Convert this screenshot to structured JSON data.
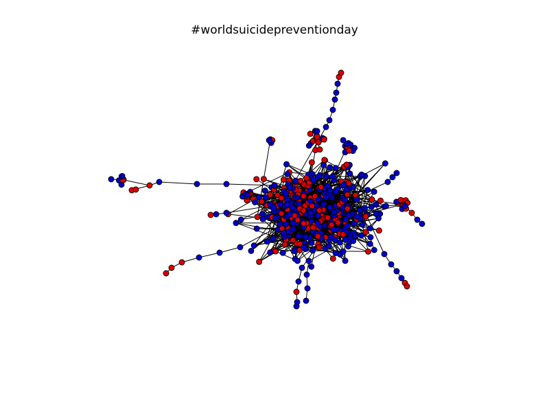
{
  "title": "#worldsuicidepreventionday",
  "graph": {
    "node_colors": {
      "primary": "#0000cc",
      "secondary": "#dd0000"
    },
    "edge_color": "#000000",
    "node_outline_color": "#000000"
  }
}
